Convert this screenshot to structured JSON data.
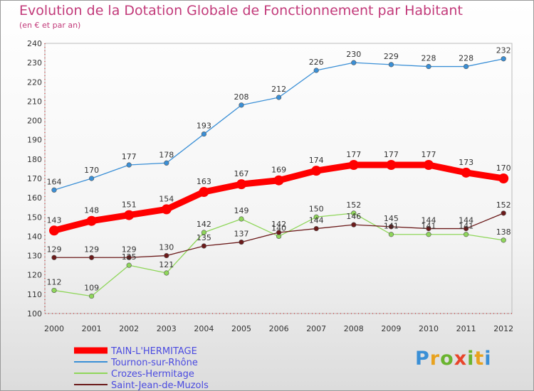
{
  "title": "Evolution de la Dotation Globale de Fonctionnement par Habitant",
  "subtitle": "(en € et par an)",
  "logo": {
    "text": "Proxiti",
    "colors": [
      "#3a8fd6",
      "#e8a21f",
      "#6ab42f",
      "#e8452a",
      "#6ab42f",
      "#e8a21f",
      "#3a8fd6"
    ]
  },
  "chart_data": {
    "type": "line",
    "x": [
      "2000",
      "2001",
      "2002",
      "2003",
      "2004",
      "2005",
      "2006",
      "2007",
      "2008",
      "2009",
      "2010",
      "2011",
      "2012"
    ],
    "ylim": [
      100,
      240
    ],
    "yticks": [
      100,
      110,
      120,
      130,
      140,
      150,
      160,
      170,
      180,
      190,
      200,
      210,
      220,
      230,
      240
    ],
    "grid": false,
    "legend_position": "bottom-left",
    "series": [
      {
        "name": "TAIN-L'HERMITAGE",
        "color": "#ff0000",
        "values": [
          143,
          148,
          151,
          154,
          163,
          167,
          169,
          174,
          177,
          177,
          177,
          173,
          170
        ]
      },
      {
        "name": "Tournon-sur-Rhône",
        "color": "#3a8fd6",
        "values": [
          164,
          170,
          177,
          178,
          193,
          208,
          212,
          226,
          230,
          229,
          228,
          228,
          232
        ]
      },
      {
        "name": "Crozes-Hermitage",
        "color": "#8fd65a",
        "values": [
          112,
          109,
          125,
          121,
          142,
          149,
          140,
          150,
          152,
          141,
          141,
          141,
          138
        ]
      },
      {
        "name": "Saint-Jean-de-Muzols",
        "color": "#6b1a1a",
        "values": [
          129,
          129,
          129,
          130,
          135,
          137,
          142,
          144,
          146,
          145,
          144,
          144,
          152
        ]
      }
    ]
  }
}
